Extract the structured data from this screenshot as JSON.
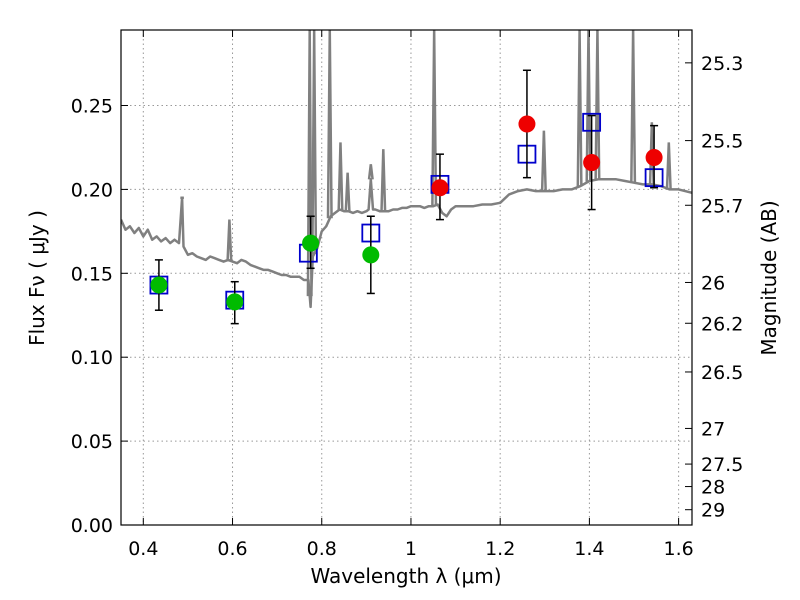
{
  "chart_data": {
    "type": "scatter",
    "title": "",
    "xlabel": "Wavelength  λ (μm)",
    "ylabel": "Flux  Fν  ( μJy )",
    "y2label": "Magnitude (AB)",
    "xlim": [
      0.35,
      1.63
    ],
    "ylim": [
      0.0,
      0.295
    ],
    "grid": true,
    "legend": "none",
    "x_ticks": [
      0.4,
      0.6,
      0.8,
      1.0,
      1.2,
      1.4,
      1.6
    ],
    "x_tick_labels": [
      "0.4",
      "0.6",
      "0.8",
      "1",
      "1.2",
      "1.4",
      "1.6"
    ],
    "y_ticks": [
      0.0,
      0.05,
      0.1,
      0.15,
      0.2,
      0.25
    ],
    "y_tick_labels": [
      "0.00",
      "0.05",
      "0.10",
      "0.15",
      "0.20",
      "0.25"
    ],
    "y2_tick_labels": [
      "25.3",
      "25.5",
      "25.7",
      "26",
      "26.2",
      "26.5",
      "27",
      "27.5",
      "28",
      "29"
    ],
    "colors": {
      "spectrum": "#808080",
      "model_box": "#0000cc",
      "green": "#00bb00",
      "red": "#ee0000",
      "errorbar": "#000000",
      "grid": "#999999"
    },
    "series": [
      {
        "kind": "spectrum-line",
        "x": [
          0.35,
          0.36,
          0.37,
          0.38,
          0.39,
          0.4,
          0.41,
          0.42,
          0.43,
          0.44,
          0.45,
          0.46,
          0.47,
          0.48,
          0.487,
          0.49,
          0.5,
          0.51,
          0.52,
          0.53,
          0.54,
          0.55,
          0.56,
          0.57,
          0.58,
          0.59,
          0.6,
          0.61,
          0.62,
          0.63,
          0.64,
          0.65,
          0.66,
          0.67,
          0.68,
          0.69,
          0.7,
          0.71,
          0.72,
          0.73,
          0.74,
          0.75,
          0.76,
          0.77,
          0.775,
          0.78,
          0.79,
          0.8,
          0.81,
          0.82,
          0.83,
          0.84,
          0.85,
          0.86,
          0.87,
          0.88,
          0.89,
          0.9,
          0.905,
          0.91,
          0.915,
          0.92,
          0.93,
          0.94,
          0.95,
          0.96,
          0.97,
          0.98,
          0.99,
          1.0,
          1.01,
          1.02,
          1.03,
          1.04,
          1.05,
          1.06,
          1.07,
          1.08,
          1.09,
          1.1,
          1.12,
          1.14,
          1.16,
          1.18,
          1.2,
          1.22,
          1.24,
          1.26,
          1.28,
          1.3,
          1.32,
          1.34,
          1.36,
          1.38,
          1.4,
          1.42,
          1.44,
          1.46,
          1.48,
          1.5,
          1.52,
          1.54,
          1.56,
          1.58,
          1.6,
          1.63
        ],
        "y": [
          0.182,
          0.176,
          0.178,
          0.174,
          0.177,
          0.172,
          0.176,
          0.17,
          0.172,
          0.169,
          0.171,
          0.168,
          0.17,
          0.168,
          0.195,
          0.166,
          0.161,
          0.162,
          0.16,
          0.159,
          0.158,
          0.16,
          0.159,
          0.158,
          0.157,
          0.158,
          0.157,
          0.156,
          0.158,
          0.157,
          0.155,
          0.154,
          0.153,
          0.152,
          0.152,
          0.151,
          0.15,
          0.149,
          0.149,
          0.148,
          0.148,
          0.148,
          0.146,
          0.146,
          0.13,
          0.16,
          0.165,
          0.175,
          0.178,
          0.184,
          0.186,
          0.188,
          0.187,
          0.187,
          0.186,
          0.187,
          0.186,
          0.187,
          0.188,
          0.206,
          0.188,
          0.188,
          0.187,
          0.187,
          0.187,
          0.188,
          0.188,
          0.189,
          0.189,
          0.19,
          0.19,
          0.19,
          0.189,
          0.19,
          0.19,
          0.191,
          0.186,
          0.184,
          0.188,
          0.19,
          0.19,
          0.19,
          0.191,
          0.191,
          0.192,
          0.197,
          0.199,
          0.2,
          0.199,
          0.199,
          0.199,
          0.2,
          0.2,
          0.202,
          0.205,
          0.206,
          0.206,
          0.206,
          0.205,
          0.204,
          0.203,
          0.203,
          0.202,
          0.2,
          0.2,
          0.198
        ]
      },
      {
        "kind": "spectrum-peaks",
        "peaks": [
          {
            "x": 0.487,
            "y": 0.195
          },
          {
            "x": 0.593,
            "y": 0.182
          },
          {
            "x": 0.773,
            "y": 0.295
          },
          {
            "x": 0.783,
            "y": 0.295
          },
          {
            "x": 0.818,
            "y": 0.295
          },
          {
            "x": 0.842,
            "y": 0.228
          },
          {
            "x": 0.858,
            "y": 0.21
          },
          {
            "x": 0.91,
            "y": 0.215
          },
          {
            "x": 0.938,
            "y": 0.224
          },
          {
            "x": 1.052,
            "y": 0.295
          },
          {
            "x": 1.298,
            "y": 0.235
          },
          {
            "x": 1.378,
            "y": 0.295
          },
          {
            "x": 1.398,
            "y": 0.295
          },
          {
            "x": 1.418,
            "y": 0.295
          },
          {
            "x": 1.498,
            "y": 0.295
          },
          {
            "x": 1.54,
            "y": 0.24
          },
          {
            "x": 1.578,
            "y": 0.228
          }
        ]
      },
      {
        "kind": "model-boxes",
        "x": [
          0.435,
          0.605,
          0.77,
          0.91,
          1.065,
          1.26,
          1.405,
          1.545
        ],
        "y": [
          0.143,
          0.134,
          0.162,
          0.174,
          0.203,
          0.221,
          0.24,
          0.207
        ]
      },
      {
        "kind": "observed-green",
        "x": [
          0.435,
          0.605,
          0.775,
          0.91
        ],
        "y": [
          0.143,
          0.133,
          0.168,
          0.161
        ],
        "err_low": [
          0.128,
          0.12,
          0.153,
          0.138
        ],
        "err_high": [
          0.158,
          0.145,
          0.184,
          0.184
        ]
      },
      {
        "kind": "observed-red",
        "x": [
          1.065,
          1.26,
          1.405,
          1.545
        ],
        "y": [
          0.201,
          0.239,
          0.216,
          0.219
        ],
        "err_low": [
          0.182,
          0.207,
          0.188,
          0.201
        ],
        "err_high": [
          0.221,
          0.271,
          0.244,
          0.238
        ]
      }
    ]
  }
}
